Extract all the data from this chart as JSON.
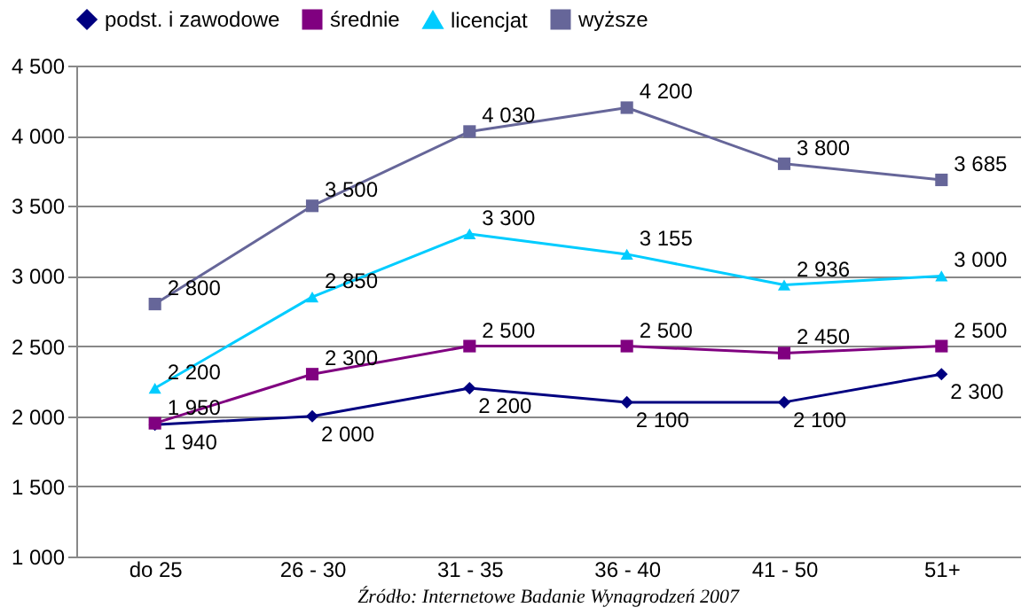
{
  "chart_data": {
    "type": "line",
    "categories": [
      "do 25",
      "26 - 30",
      "31 - 35",
      "36 - 40",
      "41 - 50",
      "51+"
    ],
    "series": [
      {
        "name": "podst. i zawodowe",
        "color": "#000080",
        "marker": "diamond",
        "values": [
          1940,
          2000,
          2200,
          2100,
          2100,
          2300
        ],
        "value_labels": [
          "1 940",
          "2 000",
          "2 200",
          "2 100",
          "2 100",
          "2 300"
        ]
      },
      {
        "name": "średnie",
        "color": "#800080",
        "marker": "square",
        "values": [
          1950,
          2300,
          2500,
          2500,
          2450,
          2500
        ],
        "value_labels": [
          "1 950",
          "2 300",
          "2 500",
          "2 500",
          "2 450",
          "2 500"
        ]
      },
      {
        "name": "licencjat",
        "color": "#00ccff",
        "marker": "triangle",
        "values": [
          2200,
          2850,
          3300,
          3155,
          2936,
          3000
        ],
        "value_labels": [
          "2 200",
          "2 850",
          "3 300",
          "3 155",
          "2 936",
          "3 000"
        ]
      },
      {
        "name": "wyższe",
        "color": "#666699",
        "marker": "square",
        "values": [
          2800,
          3500,
          4030,
          4200,
          3800,
          3685
        ],
        "value_labels": [
          "2 800",
          "3 500",
          "4 030",
          "4 200",
          "3 800",
          "3 685"
        ]
      }
    ],
    "ylim": [
      1000,
      4500
    ],
    "yticks": [
      {
        "value": 1000,
        "label": "1 000"
      },
      {
        "value": 1500,
        "label": "1 500"
      },
      {
        "value": 2000,
        "label": "2 000"
      },
      {
        "value": 2500,
        "label": "2 500"
      },
      {
        "value": 3000,
        "label": "3 000"
      },
      {
        "value": 3500,
        "label": "3 500"
      },
      {
        "value": 4000,
        "label": "4 000"
      },
      {
        "value": 4500,
        "label": "4 500"
      }
    ],
    "grid": "y",
    "legend": "top",
    "line_style": "solid",
    "annotations": [
      "Źródło: Internetowe Badanie Wynagrodzeń 2007"
    ]
  }
}
